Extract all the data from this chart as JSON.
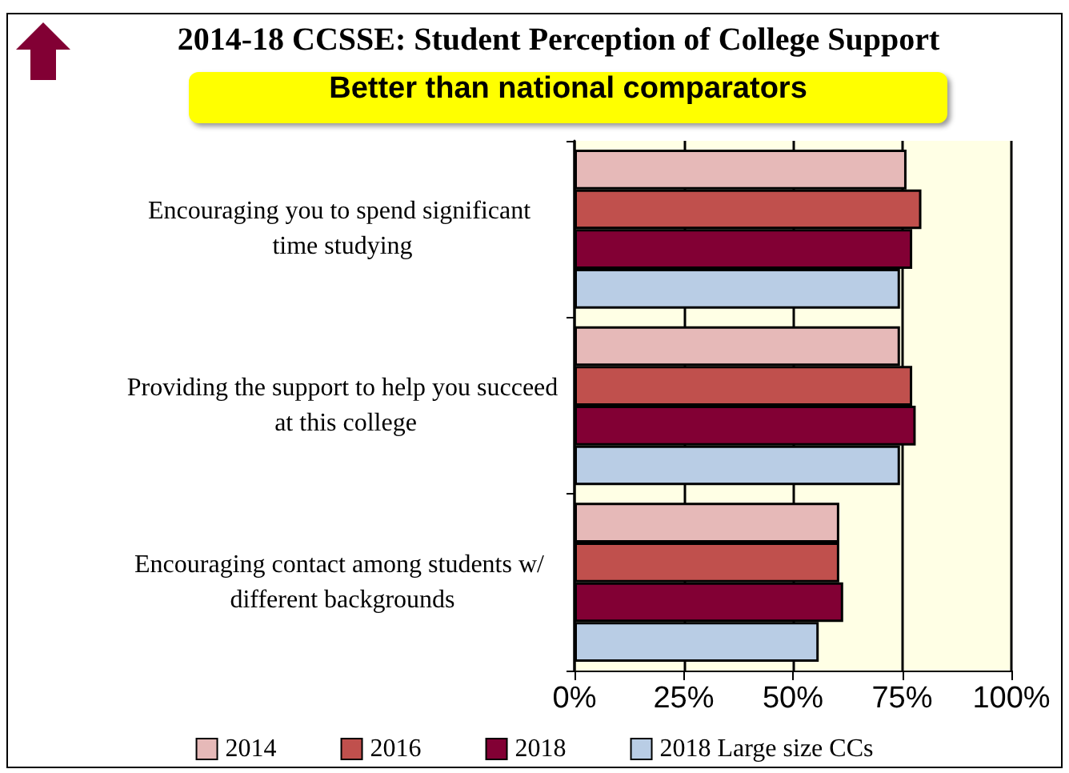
{
  "chart_data": {
    "type": "bar",
    "orientation": "horizontal",
    "title": "2014-18 CCSSE: Student Perception of College Support",
    "annotations": [
      "Better than national comparators"
    ],
    "categories": [
      "Encouraging you to spend significant time studying",
      "Providing the support to help you succeed at this college",
      "Encouraging contact among students w/ different backgrounds"
    ],
    "series": [
      {
        "name": "2014",
        "color": "#e6b9b8",
        "values": [
          76,
          74.5,
          60.6
        ]
      },
      {
        "name": "2016",
        "color": "#c0504d",
        "values": [
          79.4,
          77.3,
          60.6
        ]
      },
      {
        "name": "2018",
        "color": "#820034",
        "values": [
          77.3,
          78.1,
          61.5
        ]
      },
      {
        "name": "2018 Large size CCs",
        "color": "#b9cde5",
        "values": [
          74.5,
          74.5,
          55.9
        ]
      }
    ],
    "xlim": [
      0,
      100
    ],
    "xticks": [
      {
        "value": 0,
        "label": "0%"
      },
      {
        "value": 25,
        "label": "25%"
      },
      {
        "value": 50,
        "label": "50%"
      },
      {
        "value": 75,
        "label": "75%"
      },
      {
        "value": 100,
        "label": "100%"
      }
    ],
    "grid": "x",
    "legend": "bottom"
  }
}
